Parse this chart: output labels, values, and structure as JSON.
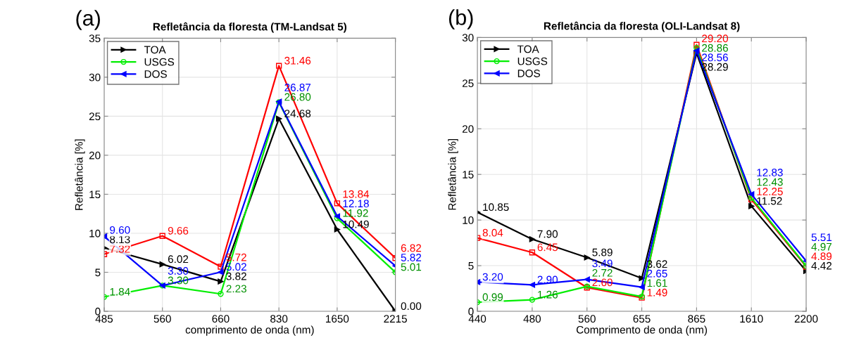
{
  "chart_data": [
    {
      "type": "line",
      "title": "Refletância da floresta (TM-Landsat 5)",
      "xlabel": "comprimento de onda (nm)",
      "ylabel": "Refletância [%]",
      "annotations": [
        "(a)"
      ],
      "categories": [
        "485",
        "560",
        "660",
        "830",
        "1650",
        "2215"
      ],
      "ylim": [
        0,
        35
      ],
      "yticks": [
        0,
        5,
        10,
        15,
        20,
        25,
        30,
        35
      ],
      "grid": true,
      "legend": "top left",
      "series": [
        {
          "name": "TOA",
          "color": "#000000",
          "marker": "triangle-right",
          "values": [
            8.13,
            6.02,
            3.82,
            24.68,
            10.49,
            0.0
          ],
          "value_labels": [
            "8.13",
            "6.02",
            "3.82",
            "24.68",
            "10.49",
            "0.00"
          ]
        },
        {
          "color": "#ff0000",
          "marker": "square",
          "values": [
            7.32,
            9.66,
            5.72,
            31.46,
            13.84,
            6.82
          ],
          "value_labels": [
            "7.32",
            "9.66",
            "5.72",
            "31.46",
            "13.84",
            "6.82"
          ]
        },
        {
          "name": "USGS",
          "color": "#00ee00",
          "marker": "circle",
          "values": [
            1.84,
            3.3,
            2.23,
            26.8,
            11.92,
            5.01
          ],
          "value_labels": [
            "1.84",
            "3.30",
            "2.23",
            "26.80",
            "11.92",
            "5.01"
          ]
        },
        {
          "name": "DOS",
          "color": "#0000ff",
          "marker": "triangle-left",
          "values": [
            9.6,
            3.3,
            5.02,
            26.87,
            12.18,
            5.82
          ],
          "value_labels": [
            "9.60",
            "3.30",
            "5.02",
            "26.87",
            "12.18",
            "5.82"
          ]
        }
      ]
    },
    {
      "type": "line",
      "title": "Refletância da floresta (OLI-Landsat 8)",
      "xlabel": "Comprimento de onda (nm)",
      "ylabel": "Refletância [%]",
      "annotations": [
        "(b)"
      ],
      "categories": [
        "440",
        "480",
        "560",
        "655",
        "865",
        "1610",
        "2200"
      ],
      "ylim": [
        0,
        30
      ],
      "yticks": [
        0,
        5,
        10,
        15,
        20,
        25,
        30
      ],
      "grid": true,
      "legend": "top left",
      "series": [
        {
          "name": "TOA",
          "color": "#000000",
          "marker": "triangle-right",
          "values": [
            10.85,
            7.9,
            5.89,
            3.62,
            28.29,
            11.52,
            4.42
          ],
          "value_labels": [
            "10.85",
            "7.90",
            "5.89",
            "3.62",
            "28.29",
            "11.52",
            "4.42"
          ]
        },
        {
          "color": "#ff0000",
          "marker": "square",
          "values": [
            8.04,
            6.45,
            2.6,
            1.49,
            29.2,
            12.25,
            4.89
          ],
          "value_labels": [
            "8.04",
            "6.45",
            "2.60",
            "1.49",
            "29.20",
            "12.25",
            "4.89"
          ]
        },
        {
          "name": "USGS",
          "color": "#00ee00",
          "marker": "circle",
          "values": [
            0.99,
            1.26,
            2.72,
            1.61,
            28.86,
            12.43,
            4.97
          ],
          "value_labels": [
            "0.99",
            "1.26",
            "2.72",
            "1.61",
            "28.86",
            "12.43",
            "4.97"
          ]
        },
        {
          "name": "DOS",
          "color": "#0000ff",
          "marker": "triangle-left",
          "values": [
            3.2,
            2.9,
            3.49,
            2.65,
            28.56,
            12.83,
            5.51
          ],
          "value_labels": [
            "3.20",
            "2.90",
            "3.49",
            "2.65",
            "28.56",
            "12.83",
            "5.51"
          ]
        }
      ]
    }
  ]
}
